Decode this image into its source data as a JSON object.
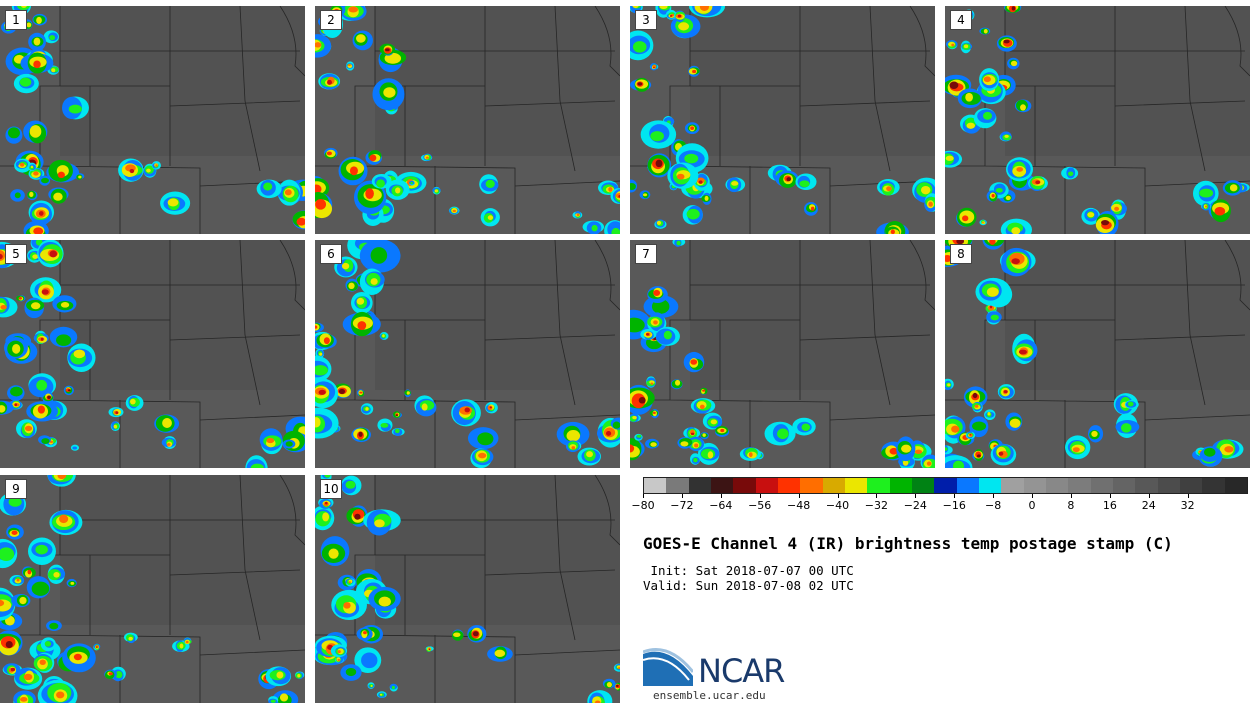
{
  "panels": [
    "1",
    "2",
    "3",
    "4",
    "5",
    "6",
    "7",
    "8",
    "9",
    "10"
  ],
  "colorbar": {
    "colors": [
      "#c8c8c8",
      "#7a7a7a",
      "#323232",
      "#3c1414",
      "#780a0a",
      "#c80f0f",
      "#ff3200",
      "#ff6e00",
      "#d8aa00",
      "#ebe600",
      "#1ef01e",
      "#00b400",
      "#008214",
      "#001eaa",
      "#0a78ff",
      "#00e6f0",
      "#a0a0a0",
      "#949494",
      "#888888",
      "#7c7c7c",
      "#707070",
      "#646464",
      "#585858",
      "#4c4c4c",
      "#404040",
      "#343434",
      "#282828"
    ],
    "tick_labels": [
      "−80",
      "−72",
      "−64",
      "−56",
      "−48",
      "−40",
      "−32",
      "−24",
      "−16",
      "−8",
      "0",
      "8",
      "16",
      "24",
      "32"
    ],
    "tick_values": [
      -80,
      -72,
      -64,
      -56,
      -48,
      -40,
      -32,
      -24,
      -16,
      -8,
      0,
      8,
      16,
      24,
      32
    ],
    "min": -80,
    "max": 44
  },
  "title": "GOES-E Channel 4 (IR) brightness temp postage stamp (C)",
  "init": " Init: Sat 2018-07-07 00 UTC",
  "valid": "Valid: Sun 2018-07-08 02 UTC",
  "logo": "NCAR",
  "site": "ensemble.ucar.edu"
}
